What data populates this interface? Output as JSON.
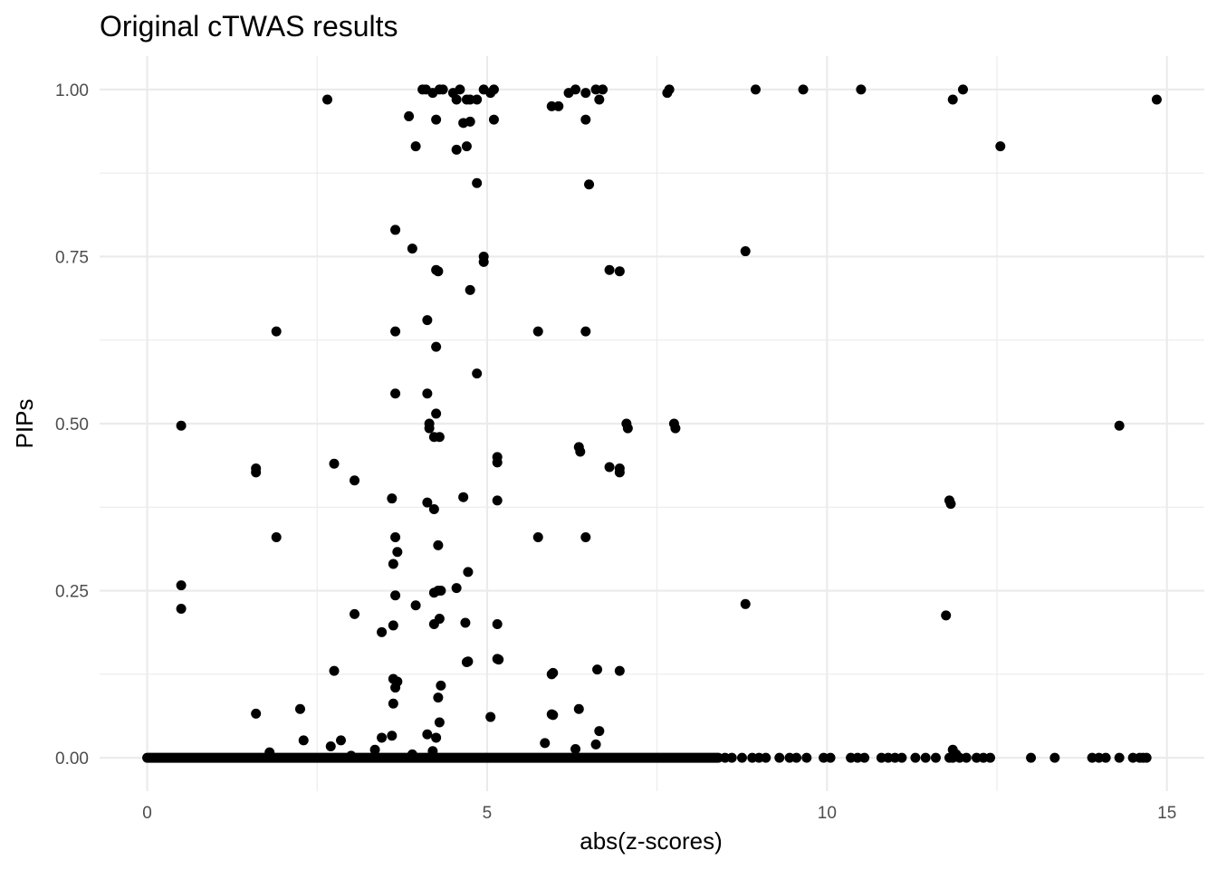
{
  "chart_data": {
    "type": "scatter",
    "title": "Original cTWAS results",
    "xlabel": "abs(z-scores)",
    "ylabel": "PIPs",
    "xlim": [
      -0.7,
      15.55
    ],
    "ylim": [
      -0.05,
      1.05
    ],
    "x_ticks": [
      0,
      5,
      10,
      15
    ],
    "x_tick_labels": [
      "0",
      "5",
      "10",
      "15"
    ],
    "y_ticks": [
      0,
      0.25,
      0.5,
      0.75,
      1
    ],
    "y_tick_labels": [
      "0.00",
      "0.25",
      "0.50",
      "0.75",
      "1.00"
    ],
    "grid": true,
    "legend": "none",
    "point_color": "#000000",
    "x": [
      2.65,
      4.05,
      4.1,
      4.2,
      4.3,
      4.35,
      4.5,
      4.55,
      4.6,
      4.7,
      4.75,
      4.85,
      4.95,
      5.05,
      5.1,
      6.05,
      6.2,
      6.3,
      6.45,
      6.6,
      6.65,
      6.7,
      7.65,
      7.68,
      8.95,
      9.65,
      10.5,
      11.85,
      12.0,
      14.85,
      3.85,
      4.25,
      4.65,
      4.75,
      5.1,
      5.95,
      6.45,
      3.95,
      4.55,
      4.7,
      12.55,
      4.85,
      6.5,
      3.65,
      3.9,
      4.95,
      4.95,
      4.25,
      4.28,
      4.75,
      6.8,
      6.95,
      8.8,
      1.9,
      3.65,
      4.12,
      5.75,
      6.45,
      4.25,
      4.85,
      3.65,
      4.12,
      0.5,
      4.15,
      7.05,
      7.07,
      7.75,
      7.77,
      14.3,
      4.15,
      4.25,
      4.22,
      4.3,
      6.35,
      6.37,
      5.15,
      5.15,
      1.6,
      1.6,
      2.75,
      6.8,
      6.95,
      6.95,
      3.05,
      3.6,
      4.65,
      4.12,
      5.15,
      11.8,
      11.82,
      4.22,
      1.9,
      3.65,
      5.75,
      6.45,
      4.28,
      3.68,
      3.62,
      4.72,
      0.5,
      4.55,
      4.22,
      4.32,
      4.28,
      3.65,
      3.95,
      8.8,
      0.5,
      3.05,
      11.75,
      4.3,
      4.22,
      4.68,
      3.62,
      5.15,
      3.45,
      4.7,
      4.72,
      5.15,
      5.17,
      2.75,
      6.62,
      6.95,
      5.95,
      5.97,
      3.68,
      3.62,
      3.65,
      4.32,
      1.6,
      2.25,
      4.28,
      3.62,
      6.35,
      5.95,
      5.97,
      4.3,
      5.05,
      6.65,
      3.45,
      3.6,
      4.12,
      4.25,
      2.3,
      2.85,
      5.85,
      6.6,
      2.7,
      3.35,
      6.3,
      11.85,
      11.9,
      4.2,
      3.9,
      1.8,
      3.0
    ],
    "y": [
      0.985,
      1.0,
      1.0,
      0.995,
      1.0,
      1.0,
      0.995,
      0.985,
      1.0,
      0.985,
      0.985,
      0.985,
      1.0,
      0.995,
      1.0,
      0.975,
      0.995,
      1.0,
      0.995,
      1.0,
      0.985,
      1.0,
      0.995,
      1.0,
      1.0,
      1.0,
      1.0,
      0.985,
      1.0,
      0.985,
      0.96,
      0.955,
      0.95,
      0.952,
      0.955,
      0.975,
      0.955,
      0.915,
      0.91,
      0.915,
      0.915,
      0.86,
      0.858,
      0.79,
      0.762,
      0.75,
      0.742,
      0.73,
      0.728,
      0.7,
      0.73,
      0.728,
      0.758,
      0.638,
      0.638,
      0.655,
      0.638,
      0.638,
      0.615,
      0.575,
      0.545,
      0.545,
      0.497,
      0.5,
      0.5,
      0.493,
      0.5,
      0.493,
      0.497,
      0.493,
      0.515,
      0.48,
      0.48,
      0.465,
      0.458,
      0.45,
      0.442,
      0.433,
      0.427,
      0.44,
      0.435,
      0.433,
      0.427,
      0.415,
      0.388,
      0.39,
      0.382,
      0.385,
      0.385,
      0.38,
      0.372,
      0.33,
      0.33,
      0.33,
      0.33,
      0.318,
      0.308,
      0.29,
      0.278,
      0.258,
      0.254,
      0.247,
      0.25,
      0.25,
      0.243,
      0.228,
      0.23,
      0.223,
      0.215,
      0.213,
      0.208,
      0.2,
      0.202,
      0.198,
      0.2,
      0.188,
      0.143,
      0.144,
      0.148,
      0.147,
      0.13,
      0.132,
      0.13,
      0.125,
      0.127,
      0.114,
      0.118,
      0.105,
      0.108,
      0.066,
      0.073,
      0.09,
      0.081,
      0.073,
      0.065,
      0.064,
      0.053,
      0.061,
      0.04,
      0.03,
      0.033,
      0.035,
      0.03,
      0.026,
      0.026,
      0.022,
      0.02,
      0.017,
      0.012,
      0.013,
      0.012,
      0.005,
      0.01,
      0.005,
      0.008,
      0.003
    ]
  }
}
